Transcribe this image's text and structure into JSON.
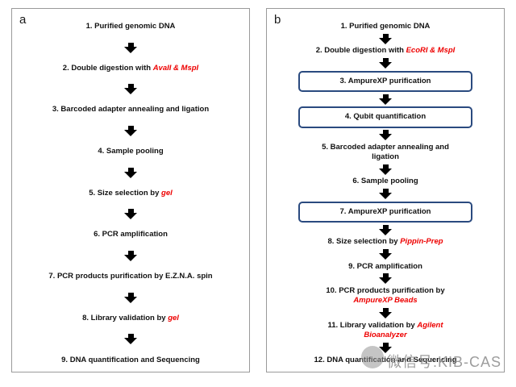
{
  "watermark": "微信号:KIB-CAS",
  "colors": {
    "accent_red": "#ee0000",
    "box_border": "#2a4a7f"
  },
  "panels": [
    {
      "label": "a",
      "steps": [
        {
          "boxed": false,
          "parts": [
            {
              "t": "1. Purified genomic DNA",
              "red": false
            }
          ]
        },
        {
          "boxed": false,
          "parts": [
            {
              "t": "2. Double digestion with ",
              "red": false
            },
            {
              "t": "AvaII & MspI",
              "red": true
            }
          ]
        },
        {
          "boxed": false,
          "parts": [
            {
              "t": "3. Barcoded adapter annealing and ligation",
              "red": false
            }
          ]
        },
        {
          "boxed": false,
          "parts": [
            {
              "t": "4. Sample pooling",
              "red": false
            }
          ]
        },
        {
          "boxed": false,
          "parts": [
            {
              "t": "5. Size selection by ",
              "red": false
            },
            {
              "t": "gel",
              "red": true
            }
          ]
        },
        {
          "boxed": false,
          "parts": [
            {
              "t": "6. PCR amplification",
              "red": false
            }
          ]
        },
        {
          "boxed": false,
          "parts": [
            {
              "t": "7. PCR products purification by  E.Z.N.A. spin",
              "red": false
            }
          ]
        },
        {
          "boxed": false,
          "parts": [
            {
              "t": "8. Library validation by ",
              "red": false
            },
            {
              "t": "gel",
              "red": true
            }
          ]
        },
        {
          "boxed": false,
          "parts": [
            {
              "t": "9. DNA quantification and Sequencing",
              "red": false
            }
          ]
        }
      ]
    },
    {
      "label": "b",
      "steps": [
        {
          "boxed": false,
          "parts": [
            {
              "t": "1. Purified genomic DNA",
              "red": false
            }
          ]
        },
        {
          "boxed": false,
          "parts": [
            {
              "t": "2. Double digestion with ",
              "red": false
            },
            {
              "t": "EcoRI & MspI",
              "red": true
            }
          ]
        },
        {
          "boxed": true,
          "parts": [
            {
              "t": "3. AmpureXP purification",
              "red": false
            }
          ]
        },
        {
          "boxed": true,
          "parts": [
            {
              "t": "4. Qubit quantification",
              "red": false
            }
          ]
        },
        {
          "boxed": false,
          "parts": [
            {
              "t": "5. Barcoded adapter annealing and\nligation",
              "red": false
            }
          ]
        },
        {
          "boxed": false,
          "parts": [
            {
              "t": "6. Sample pooling",
              "red": false
            }
          ]
        },
        {
          "boxed": true,
          "parts": [
            {
              "t": "7. AmpureXP purification",
              "red": false
            }
          ]
        },
        {
          "boxed": false,
          "parts": [
            {
              "t": "8. Size selection by ",
              "red": false
            },
            {
              "t": "Pippin-Prep",
              "red": true
            }
          ]
        },
        {
          "boxed": false,
          "parts": [
            {
              "t": "9. PCR amplification",
              "red": false
            }
          ]
        },
        {
          "boxed": false,
          "parts": [
            {
              "t": "10. PCR products purification by\n",
              "red": false
            },
            {
              "t": "AmpureXP Beads",
              "red": true
            }
          ]
        },
        {
          "boxed": false,
          "parts": [
            {
              "t": "11. Library validation by ",
              "red": false
            },
            {
              "t": "Agilent\nBioanalyzer",
              "red": true
            }
          ]
        },
        {
          "boxed": false,
          "parts": [
            {
              "t": "12. DNA quantification and Sequencing",
              "red": false
            }
          ]
        }
      ]
    }
  ]
}
